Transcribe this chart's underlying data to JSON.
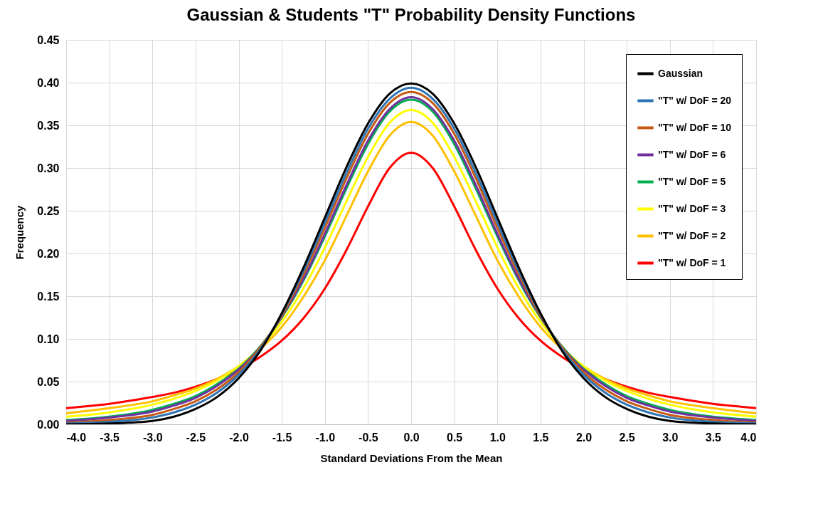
{
  "chart_data": {
    "type": "line",
    "title": "Gaussian & Students \"T\" Probability Density Functions",
    "xlabel": "Standard  Deviations From the Mean",
    "ylabel": "Frequency",
    "x": [
      -4,
      -3.5,
      -3,
      -2.75,
      -2.5,
      -2.25,
      -2,
      -1.75,
      -1.5,
      -1.25,
      -1,
      -0.75,
      -0.5,
      -0.25,
      0,
      0.25,
      0.5,
      0.75,
      1,
      1.25,
      1.5,
      1.75,
      2,
      2.25,
      2.5,
      2.75,
      3,
      3.5,
      4
    ],
    "xlim": [
      -4,
      4
    ],
    "xticks": [
      {
        "value": -4,
        "label": "-4.0"
      },
      {
        "value": -3.5,
        "label": "-3.5"
      },
      {
        "value": -3,
        "label": "-3.0"
      },
      {
        "value": -2.5,
        "label": "-2.5"
      },
      {
        "value": -2,
        "label": "-2.0"
      },
      {
        "value": -1.5,
        "label": "-1.5"
      },
      {
        "value": -1,
        "label": "-1.0"
      },
      {
        "value": -0.5,
        "label": "-0.5"
      },
      {
        "value": 0,
        "label": "0.0"
      },
      {
        "value": 0.5,
        "label": "0.5"
      },
      {
        "value": 1,
        "label": "1.0"
      },
      {
        "value": 1.5,
        "label": "1.5"
      },
      {
        "value": 2,
        "label": "2.0"
      },
      {
        "value": 2.5,
        "label": "2.5"
      },
      {
        "value": 3,
        "label": "3.0"
      },
      {
        "value": 3.5,
        "label": "3.5"
      },
      {
        "value": 4,
        "label": "4.0"
      }
    ],
    "ylim": [
      0,
      0.45
    ],
    "yticks": [
      {
        "value": 0,
        "label": "0.00"
      },
      {
        "value": 0.05,
        "label": "0.05"
      },
      {
        "value": 0.1,
        "label": "0.10"
      },
      {
        "value": 0.15,
        "label": "0.15"
      },
      {
        "value": 0.2,
        "label": "0.20"
      },
      {
        "value": 0.25,
        "label": "0.25"
      },
      {
        "value": 0.3,
        "label": "0.30"
      },
      {
        "value": 0.35,
        "label": "0.35"
      },
      {
        "value": 0.4,
        "label": "0.40"
      },
      {
        "value": 0.45,
        "label": "0.45"
      }
    ],
    "grid": true,
    "legend": "top right",
    "line_style": "solid",
    "series": [
      {
        "name": "Gaussian",
        "color": "#000000",
        "values": [
          0,
          0.001,
          0.004,
          0.009,
          0.018,
          0.032,
          0.054,
          0.086,
          0.13,
          0.183,
          0.242,
          0.301,
          0.352,
          0.387,
          0.399,
          0.387,
          0.352,
          0.301,
          0.242,
          0.183,
          0.13,
          0.086,
          0.054,
          0.032,
          0.018,
          0.009,
          0.004,
          0.001,
          0
        ]
      },
      {
        "name": "\"T\" w/ DoF = 20",
        "color": "#2e75b6",
        "values": [
          0.001,
          0.003,
          0.008,
          0.014,
          0.023,
          0.037,
          0.058,
          0.088,
          0.129,
          0.179,
          0.236,
          0.294,
          0.346,
          0.381,
          0.394,
          0.381,
          0.346,
          0.294,
          0.236,
          0.179,
          0.129,
          0.088,
          0.058,
          0.037,
          0.023,
          0.014,
          0.008,
          0.003,
          0.001
        ]
      },
      {
        "name": "\"T\" w/ DoF = 10",
        "color": "#c55a11",
        "values": [
          0.002,
          0.005,
          0.011,
          0.018,
          0.027,
          0.041,
          0.061,
          0.09,
          0.127,
          0.175,
          0.23,
          0.288,
          0.34,
          0.376,
          0.389,
          0.376,
          0.34,
          0.288,
          0.23,
          0.175,
          0.127,
          0.09,
          0.061,
          0.041,
          0.027,
          0.018,
          0.011,
          0.005,
          0.002
        ]
      },
      {
        "name": "\"T\" w/ DoF = 6",
        "color": "#7030a0",
        "values": [
          0.004,
          0.008,
          0.015,
          0.022,
          0.031,
          0.045,
          0.064,
          0.09,
          0.126,
          0.17,
          0.223,
          0.28,
          0.332,
          0.369,
          0.383,
          0.369,
          0.332,
          0.28,
          0.223,
          0.17,
          0.126,
          0.09,
          0.064,
          0.045,
          0.031,
          0.022,
          0.015,
          0.008,
          0.004
        ]
      },
      {
        "name": "\"T\" w/ DoF = 5",
        "color": "#00b050",
        "values": [
          0.005,
          0.009,
          0.017,
          0.024,
          0.033,
          0.047,
          0.065,
          0.091,
          0.125,
          0.168,
          0.22,
          0.276,
          0.328,
          0.366,
          0.38,
          0.366,
          0.328,
          0.276,
          0.22,
          0.168,
          0.125,
          0.091,
          0.065,
          0.047,
          0.033,
          0.024,
          0.017,
          0.009,
          0.005
        ]
      },
      {
        "name": "\"T\" w/ DoF = 3",
        "color": "#ffff00",
        "values": [
          0.009,
          0.014,
          0.023,
          0.03,
          0.039,
          0.051,
          0.068,
          0.09,
          0.12,
          0.159,
          0.207,
          0.261,
          0.313,
          0.353,
          0.368,
          0.353,
          0.313,
          0.261,
          0.207,
          0.159,
          0.12,
          0.09,
          0.068,
          0.051,
          0.039,
          0.03,
          0.023,
          0.014,
          0.009
        ]
      },
      {
        "name": "\"T\" w/ DoF = 2",
        "color": "#ffc000",
        "values": [
          0.013,
          0.019,
          0.027,
          0.034,
          0.042,
          0.053,
          0.068,
          0.088,
          0.114,
          0.149,
          0.192,
          0.244,
          0.296,
          0.338,
          0.354,
          0.338,
          0.296,
          0.244,
          0.192,
          0.149,
          0.114,
          0.088,
          0.068,
          0.053,
          0.042,
          0.034,
          0.027,
          0.019,
          0.013
        ]
      },
      {
        "name": "\"T\" w/ DoF = 1",
        "color": "#ff0000",
        "values": [
          0.019,
          0.024,
          0.032,
          0.037,
          0.044,
          0.053,
          0.064,
          0.079,
          0.098,
          0.124,
          0.159,
          0.204,
          0.255,
          0.3,
          0.318,
          0.3,
          0.255,
          0.204,
          0.159,
          0.124,
          0.098,
          0.079,
          0.064,
          0.053,
          0.044,
          0.037,
          0.032,
          0.024,
          0.019
        ]
      }
    ]
  }
}
